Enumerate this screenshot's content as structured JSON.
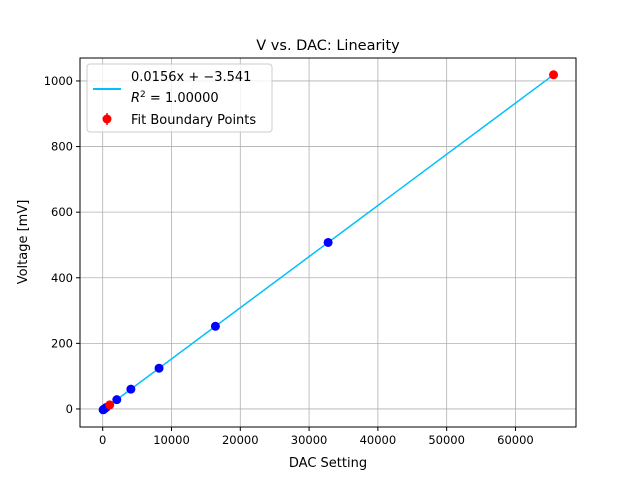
{
  "chart_data": {
    "type": "scatter",
    "title": "V vs. DAC: Linearity",
    "xlabel": "DAC Setting",
    "ylabel": "Voltage [mV]",
    "xlim": [
      -3300,
      68800
    ],
    "ylim": [
      -55,
      1070
    ],
    "xticks": [
      0,
      10000,
      20000,
      30000,
      40000,
      50000,
      60000
    ],
    "yticks": [
      0,
      200,
      400,
      600,
      800,
      1000
    ],
    "grid": true,
    "legend_position": "top-left",
    "fit": {
      "slope": 0.0156,
      "intercept": -3.541,
      "label_line1": "0.0156x + −3.541",
      "label_line2_prefix": "R",
      "label_line2_sup": "2",
      "label_line2_rest": " = 1.00000",
      "color": "#00bfff",
      "x_range": [
        0,
        65535
      ]
    },
    "series": [
      {
        "color": "#0000ff",
        "x": [
          64,
          128,
          256,
          512,
          2048,
          4096,
          8192,
          16384,
          32768
        ],
        "y": [
          -2.5,
          -1.5,
          0.5,
          4.5,
          28.4,
          60.4,
          124.3,
          252.1,
          507.6
        ]
      },
      {
        "name": "Fit Boundary Points",
        "color": "#ff0000",
        "x": [
          1024,
          65535
        ],
        "y": [
          12.4,
          1018.8
        ]
      }
    ]
  }
}
